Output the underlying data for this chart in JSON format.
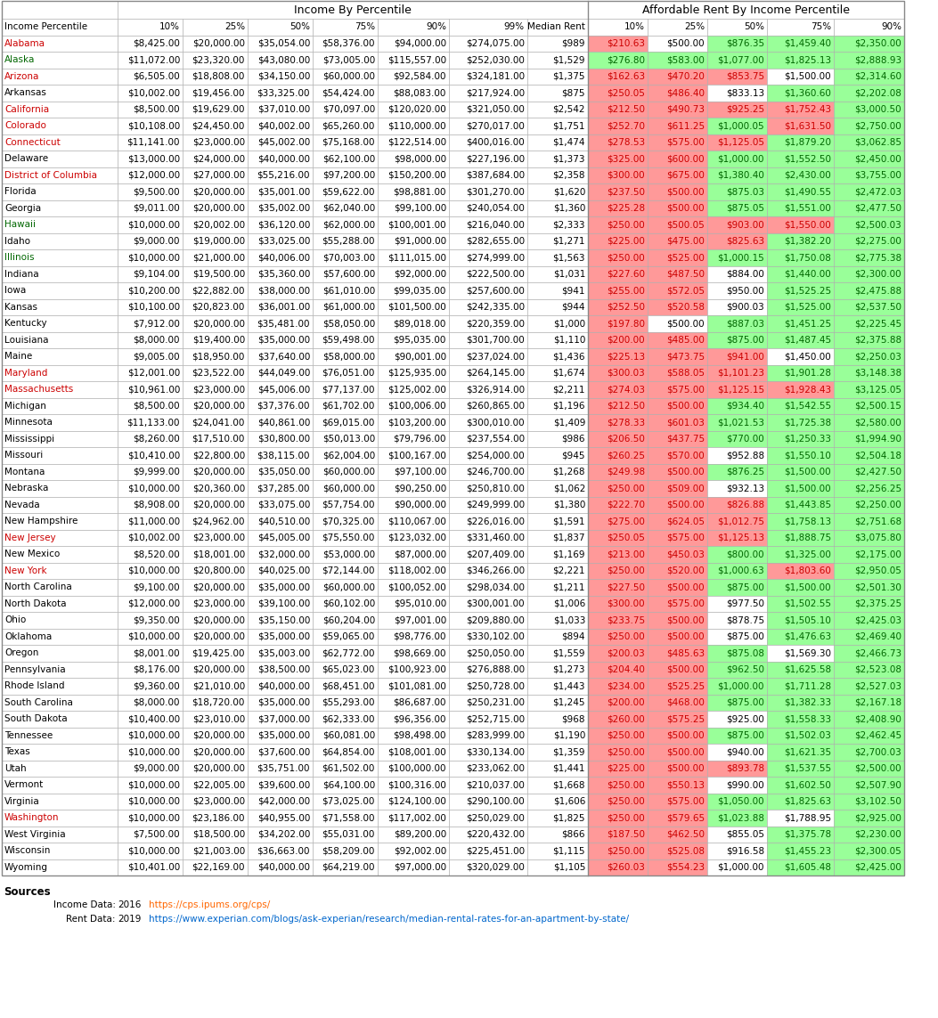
{
  "title_left": "Income By Percentile",
  "title_right": "Affordable Rent By Income Percentile",
  "col_headers": [
    "Income Percentile",
    "10%",
    "25%",
    "50%",
    "75%",
    "90%",
    "99%",
    "Median Rent",
    "10%",
    "25%",
    "50%",
    "75%",
    "90%"
  ],
  "states": [
    "Alabama",
    "Alaska",
    "Arizona",
    "Arkansas",
    "California",
    "Colorado",
    "Connecticut",
    "Delaware",
    "District of Columbia",
    "Florida",
    "Georgia",
    "Hawaii",
    "Idaho",
    "Illinois",
    "Indiana",
    "Iowa",
    "Kansas",
    "Kentucky",
    "Louisiana",
    "Maine",
    "Maryland",
    "Massachusetts",
    "Michigan",
    "Minnesota",
    "Mississippi",
    "Missouri",
    "Montana",
    "Nebraska",
    "Nevada",
    "New Hampshire",
    "New Jersey",
    "New Mexico",
    "New York",
    "North Carolina",
    "North Dakota",
    "Ohio",
    "Oklahoma",
    "Oregon",
    "Pennsylvania",
    "Rhode Island",
    "South Carolina",
    "South Dakota",
    "Tennessee",
    "Texas",
    "Utah",
    "Vermont",
    "Virginia",
    "Washington",
    "West Virginia",
    "Wisconsin",
    "Wyoming"
  ],
  "income_10": [
    "$8,425.00",
    "$11,072.00",
    "$6,505.00",
    "$10,002.00",
    "$8,500.00",
    "$10,108.00",
    "$11,141.00",
    "$13,000.00",
    "$12,000.00",
    "$9,500.00",
    "$9,011.00",
    "$10,000.00",
    "$9,000.00",
    "$10,000.00",
    "$9,104.00",
    "$10,200.00",
    "$10,100.00",
    "$7,912.00",
    "$8,000.00",
    "$9,005.00",
    "$12,001.00",
    "$10,961.00",
    "$8,500.00",
    "$11,133.00",
    "$8,260.00",
    "$10,410.00",
    "$9,999.00",
    "$10,000.00",
    "$8,908.00",
    "$11,000.00",
    "$10,002.00",
    "$8,520.00",
    "$10,000.00",
    "$9,100.00",
    "$12,000.00",
    "$9,350.00",
    "$10,000.00",
    "$8,001.00",
    "$8,176.00",
    "$9,360.00",
    "$8,000.00",
    "$10,400.00",
    "$10,000.00",
    "$10,000.00",
    "$9,000.00",
    "$10,000.00",
    "$10,000.00",
    "$10,000.00",
    "$7,500.00",
    "$10,000.00",
    "$10,401.00"
  ],
  "income_25": [
    "$20,000.00",
    "$23,320.00",
    "$18,808.00",
    "$19,456.00",
    "$19,629.00",
    "$24,450.00",
    "$23,000.00",
    "$24,000.00",
    "$27,000.00",
    "$20,000.00",
    "$20,000.00",
    "$20,002.00",
    "$19,000.00",
    "$21,000.00",
    "$19,500.00",
    "$22,882.00",
    "$20,823.00",
    "$20,000.00",
    "$19,400.00",
    "$18,950.00",
    "$23,522.00",
    "$23,000.00",
    "$20,000.00",
    "$24,041.00",
    "$17,510.00",
    "$22,800.00",
    "$20,000.00",
    "$20,360.00",
    "$20,000.00",
    "$24,962.00",
    "$23,000.00",
    "$18,001.00",
    "$20,800.00",
    "$20,000.00",
    "$23,000.00",
    "$20,000.00",
    "$20,000.00",
    "$19,425.00",
    "$20,000.00",
    "$21,010.00",
    "$18,720.00",
    "$23,010.00",
    "$20,000.00",
    "$20,000.00",
    "$20,000.00",
    "$22,005.00",
    "$23,000.00",
    "$23,186.00",
    "$18,500.00",
    "$21,003.00",
    "$22,169.00"
  ],
  "income_50": [
    "$35,054.00",
    "$43,080.00",
    "$34,150.00",
    "$33,325.00",
    "$37,010.00",
    "$40,002.00",
    "$45,002.00",
    "$40,000.00",
    "$55,216.00",
    "$35,001.00",
    "$35,002.00",
    "$36,120.00",
    "$33,025.00",
    "$40,006.00",
    "$35,360.00",
    "$38,000.00",
    "$36,001.00",
    "$35,481.00",
    "$35,000.00",
    "$37,640.00",
    "$44,049.00",
    "$45,006.00",
    "$37,376.00",
    "$40,861.00",
    "$30,800.00",
    "$38,115.00",
    "$35,050.00",
    "$37,285.00",
    "$33,075.00",
    "$40,510.00",
    "$45,005.00",
    "$32,000.00",
    "$40,025.00",
    "$35,000.00",
    "$39,100.00",
    "$35,150.00",
    "$35,000.00",
    "$35,003.00",
    "$38,500.00",
    "$40,000.00",
    "$35,000.00",
    "$37,000.00",
    "$35,000.00",
    "$37,600.00",
    "$35,751.00",
    "$39,600.00",
    "$42,000.00",
    "$40,955.00",
    "$34,202.00",
    "$36,663.00",
    "$40,000.00"
  ],
  "income_75": [
    "$58,376.00",
    "$73,005.00",
    "$60,000.00",
    "$54,424.00",
    "$70,097.00",
    "$65,260.00",
    "$75,168.00",
    "$62,100.00",
    "$97,200.00",
    "$59,622.00",
    "$62,040.00",
    "$62,000.00",
    "$55,288.00",
    "$70,003.00",
    "$57,600.00",
    "$61,010.00",
    "$61,000.00",
    "$58,050.00",
    "$59,498.00",
    "$58,000.00",
    "$76,051.00",
    "$77,137.00",
    "$61,702.00",
    "$69,015.00",
    "$50,013.00",
    "$62,004.00",
    "$60,000.00",
    "$60,000.00",
    "$57,754.00",
    "$70,325.00",
    "$75,550.00",
    "$53,000.00",
    "$72,144.00",
    "$60,000.00",
    "$60,102.00",
    "$60,204.00",
    "$59,065.00",
    "$62,772.00",
    "$65,023.00",
    "$68,451.00",
    "$55,293.00",
    "$62,333.00",
    "$60,081.00",
    "$64,854.00",
    "$61,502.00",
    "$64,100.00",
    "$73,025.00",
    "$71,558.00",
    "$55,031.00",
    "$58,209.00",
    "$64,219.00"
  ],
  "income_90": [
    "$94,000.00",
    "$115,557.00",
    "$92,584.00",
    "$88,083.00",
    "$120,020.00",
    "$110,000.00",
    "$122,514.00",
    "$98,000.00",
    "$150,200.00",
    "$98,881.00",
    "$99,100.00",
    "$100,001.00",
    "$91,000.00",
    "$111,015.00",
    "$92,000.00",
    "$99,035.00",
    "$101,500.00",
    "$89,018.00",
    "$95,035.00",
    "$90,001.00",
    "$125,935.00",
    "$125,002.00",
    "$100,006.00",
    "$103,200.00",
    "$79,796.00",
    "$100,167.00",
    "$97,100.00",
    "$90,250.00",
    "$90,000.00",
    "$110,067.00",
    "$123,032.00",
    "$87,000.00",
    "$118,002.00",
    "$100,052.00",
    "$95,010.00",
    "$97,001.00",
    "$98,776.00",
    "$98,669.00",
    "$100,923.00",
    "$101,081.00",
    "$86,687.00",
    "$96,356.00",
    "$98,498.00",
    "$108,001.00",
    "$100,000.00",
    "$100,316.00",
    "$124,100.00",
    "$117,002.00",
    "$89,200.00",
    "$92,002.00",
    "$97,000.00"
  ],
  "income_99": [
    "$274,075.00",
    "$252,030.00",
    "$324,181.00",
    "$217,924.00",
    "$321,050.00",
    "$270,017.00",
    "$400,016.00",
    "$227,196.00",
    "$387,684.00",
    "$301,270.00",
    "$240,054.00",
    "$216,040.00",
    "$282,655.00",
    "$274,999.00",
    "$222,500.00",
    "$257,600.00",
    "$242,335.00",
    "$220,359.00",
    "$301,700.00",
    "$237,024.00",
    "$264,145.00",
    "$326,914.00",
    "$260,865.00",
    "$300,010.00",
    "$237,554.00",
    "$254,000.00",
    "$246,700.00",
    "$250,810.00",
    "$249,999.00",
    "$226,016.00",
    "$331,460.00",
    "$207,409.00",
    "$346,266.00",
    "$298,034.00",
    "$300,001.00",
    "$209,880.00",
    "$330,102.00",
    "$250,050.00",
    "$276,888.00",
    "$250,728.00",
    "$250,231.00",
    "$252,715.00",
    "$283,999.00",
    "$330,134.00",
    "$233,062.00",
    "$210,037.00",
    "$290,100.00",
    "$250,029.00",
    "$220,432.00",
    "$225,451.00",
    "$320,029.00"
  ],
  "median_rent": [
    "$989",
    "$1,529",
    "$1,375",
    "$875",
    "$2,542",
    "$1,751",
    "$1,474",
    "$1,373",
    "$2,358",
    "$1,620",
    "$1,360",
    "$2,333",
    "$1,271",
    "$1,563",
    "$1,031",
    "$941",
    "$944",
    "$1,000",
    "$1,110",
    "$1,436",
    "$1,674",
    "$2,211",
    "$1,196",
    "$1,409",
    "$986",
    "$945",
    "$1,268",
    "$1,062",
    "$1,380",
    "$1,591",
    "$1,837",
    "$1,169",
    "$2,221",
    "$1,211",
    "$1,006",
    "$1,033",
    "$894",
    "$1,559",
    "$1,273",
    "$1,443",
    "$1,245",
    "$968",
    "$1,190",
    "$1,359",
    "$1,441",
    "$1,668",
    "$1,606",
    "$1,825",
    "$866",
    "$1,115",
    "$1,105"
  ],
  "rent_10": [
    "$210.63",
    "$276.80",
    "$162.63",
    "$250.05",
    "$212.50",
    "$252.70",
    "$278.53",
    "$325.00",
    "$300.00",
    "$237.50",
    "$225.28",
    "$250.00",
    "$225.00",
    "$250.00",
    "$227.60",
    "$255.00",
    "$252.50",
    "$197.80",
    "$200.00",
    "$225.13",
    "$300.03",
    "$274.03",
    "$212.50",
    "$278.33",
    "$206.50",
    "$260.25",
    "$249.98",
    "$250.00",
    "$222.70",
    "$275.00",
    "$250.05",
    "$213.00",
    "$250.00",
    "$227.50",
    "$300.00",
    "$233.75",
    "$250.00",
    "$200.03",
    "$204.40",
    "$234.00",
    "$200.00",
    "$260.00",
    "$250.00",
    "$250.00",
    "$225.00",
    "$250.00",
    "$250.00",
    "$250.00",
    "$187.50",
    "$250.00",
    "$260.03"
  ],
  "rent_25": [
    "$500.00",
    "$583.00",
    "$470.20",
    "$486.40",
    "$490.73",
    "$611.25",
    "$575.00",
    "$600.00",
    "$675.00",
    "$500.00",
    "$500.00",
    "$500.05",
    "$475.00",
    "$525.00",
    "$487.50",
    "$572.05",
    "$520.58",
    "$500.00",
    "$485.00",
    "$473.75",
    "$588.05",
    "$575.00",
    "$500.00",
    "$601.03",
    "$437.75",
    "$570.00",
    "$500.00",
    "$509.00",
    "$500.00",
    "$624.05",
    "$575.00",
    "$450.03",
    "$520.00",
    "$500.00",
    "$575.00",
    "$500.00",
    "$500.00",
    "$485.63",
    "$500.00",
    "$525.25",
    "$468.00",
    "$575.25",
    "$500.00",
    "$500.00",
    "$500.00",
    "$550.13",
    "$575.00",
    "$579.65",
    "$462.50",
    "$525.08",
    "$554.23"
  ],
  "rent_50": [
    "$876.35",
    "$1,077.00",
    "$853.75",
    "$833.13",
    "$925.25",
    "$1,000.05",
    "$1,125.05",
    "$1,000.00",
    "$1,380.40",
    "$875.03",
    "$875.05",
    "$903.00",
    "$825.63",
    "$1,000.15",
    "$884.00",
    "$950.00",
    "$900.03",
    "$887.03",
    "$875.00",
    "$941.00",
    "$1,101.23",
    "$1,125.15",
    "$934.40",
    "$1,021.53",
    "$770.00",
    "$952.88",
    "$876.25",
    "$932.13",
    "$826.88",
    "$1,012.75",
    "$1,125.13",
    "$800.00",
    "$1,000.63",
    "$875.00",
    "$977.50",
    "$878.75",
    "$875.00",
    "$875.08",
    "$962.50",
    "$1,000.00",
    "$875.00",
    "$925.00",
    "$875.00",
    "$940.00",
    "$893.78",
    "$990.00",
    "$1,050.00",
    "$1,023.88",
    "$855.05",
    "$916.58",
    "$1,000.00"
  ],
  "rent_75": [
    "$1,459.40",
    "$1,825.13",
    "$1,500.00",
    "$1,360.60",
    "$1,752.43",
    "$1,631.50",
    "$1,879.20",
    "$1,552.50",
    "$2,430.00",
    "$1,490.55",
    "$1,551.00",
    "$1,550.00",
    "$1,382.20",
    "$1,750.08",
    "$1,440.00",
    "$1,525.25",
    "$1,525.00",
    "$1,451.25",
    "$1,487.45",
    "$1,450.00",
    "$1,901.28",
    "$1,928.43",
    "$1,542.55",
    "$1,725.38",
    "$1,250.33",
    "$1,550.10",
    "$1,500.00",
    "$1,500.00",
    "$1,443.85",
    "$1,758.13",
    "$1,888.75",
    "$1,325.00",
    "$1,803.60",
    "$1,500.00",
    "$1,502.55",
    "$1,505.10",
    "$1,476.63",
    "$1,569.30",
    "$1,625.58",
    "$1,711.28",
    "$1,382.33",
    "$1,558.33",
    "$1,502.03",
    "$1,621.35",
    "$1,537.55",
    "$1,602.50",
    "$1,825.63",
    "$1,788.95",
    "$1,375.78",
    "$1,455.23",
    "$1,605.48"
  ],
  "rent_90": [
    "$2,350.00",
    "$2,888.93",
    "$2,314.60",
    "$2,202.08",
    "$3,000.50",
    "$2,750.00",
    "$3,062.85",
    "$2,450.00",
    "$3,755.00",
    "$2,472.03",
    "$2,477.50",
    "$2,500.03",
    "$2,275.00",
    "$2,775.38",
    "$2,300.00",
    "$2,475.88",
    "$2,537.50",
    "$2,225.45",
    "$2,375.88",
    "$2,250.03",
    "$3,148.38",
    "$3,125.05",
    "$2,500.15",
    "$2,580.00",
    "$1,994.90",
    "$2,504.18",
    "$2,427.50",
    "$2,256.25",
    "$2,250.00",
    "$2,751.68",
    "$3,075.80",
    "$2,175.00",
    "$2,950.05",
    "$2,501.30",
    "$2,375.25",
    "$2,425.03",
    "$2,469.40",
    "$2,466.73",
    "$2,523.08",
    "$2,527.03",
    "$2,167.18",
    "$2,408.90",
    "$2,462.45",
    "$2,700.03",
    "$2,500.00",
    "$2,507.90",
    "$3,102.50",
    "$2,925.00",
    "$2,230.00",
    "$2,300.05",
    "$2,425.00"
  ],
  "state_colors": {
    "Alabama": "#FF9999",
    "Alaska": "#99FF99",
    "Arizona": "#FF9999",
    "Arkansas": "#FFFFFF",
    "California": "#FF9999",
    "Colorado": "#FF9999",
    "Connecticut": "#FF9999",
    "Delaware": "#FFFFFF",
    "District of Columbia": "#FF9999",
    "Florida": "#FFFFFF",
    "Georgia": "#FFFFFF",
    "Hawaii": "#99FF99",
    "Idaho": "#FFFFFF",
    "Illinois": "#99FF99",
    "Indiana": "#FFFFFF",
    "Iowa": "#FFFFFF",
    "Kansas": "#FFFFFF",
    "Kentucky": "#FFFFFF",
    "Louisiana": "#FFFFFF",
    "Maine": "#FFFFFF",
    "Maryland": "#FF9999",
    "Massachusetts": "#FF9999",
    "Michigan": "#FFFFFF",
    "Minnesota": "#FFFFFF",
    "Mississippi": "#FFFFFF",
    "Missouri": "#FFFFFF",
    "Montana": "#FFFFFF",
    "Nebraska": "#FFFFFF",
    "Nevada": "#FFFFFF",
    "New Hampshire": "#FFFFFF",
    "New Jersey": "#FF9999",
    "New Mexico": "#FFFFFF",
    "New York": "#FF9999",
    "North Carolina": "#FFFFFF",
    "North Dakota": "#FFFFFF",
    "Ohio": "#FFFFFF",
    "Oklahoma": "#FFFFFF",
    "Oregon": "#FFFFFF",
    "Pennsylvania": "#FFFFFF",
    "Rhode Island": "#FFFFFF",
    "South Carolina": "#FFFFFF",
    "South Dakota": "#FFFFFF",
    "Tennessee": "#FFFFFF",
    "Texas": "#FFFFFF",
    "Utah": "#FFFFFF",
    "Vermont": "#FFFFFF",
    "Virginia": "#FFFFFF",
    "Washington": "#FF9999",
    "West Virginia": "#FFFFFF",
    "Wisconsin": "#FFFFFF",
    "Wyoming": "#FFFFFF"
  },
  "rent_colors": {
    "Alabama": [
      "#FF9999",
      "#FFFFFF",
      "#99FF99",
      "#99FF99",
      "#99FF99"
    ],
    "Alaska": [
      "#99FF99",
      "#99FF99",
      "#99FF99",
      "#99FF99",
      "#99FF99"
    ],
    "Arizona": [
      "#FF9999",
      "#FF9999",
      "#FF9999",
      "#FFFFFF",
      "#99FF99"
    ],
    "Arkansas": [
      "#FF9999",
      "#FF9999",
      "#FFFFFF",
      "#99FF99",
      "#99FF99"
    ],
    "California": [
      "#FF9999",
      "#FF9999",
      "#FF9999",
      "#FF9999",
      "#99FF99"
    ],
    "Colorado": [
      "#FF9999",
      "#FF9999",
      "#99FF99",
      "#FF9999",
      "#99FF99"
    ],
    "Connecticut": [
      "#FF9999",
      "#FF9999",
      "#FF9999",
      "#99FF99",
      "#99FF99"
    ],
    "Delaware": [
      "#FF9999",
      "#FF9999",
      "#99FF99",
      "#99FF99",
      "#99FF99"
    ],
    "District of Columbia": [
      "#FF9999",
      "#FF9999",
      "#99FF99",
      "#99FF99",
      "#99FF99"
    ],
    "Florida": [
      "#FF9999",
      "#FF9999",
      "#99FF99",
      "#99FF99",
      "#99FF99"
    ],
    "Georgia": [
      "#FF9999",
      "#FF9999",
      "#99FF99",
      "#99FF99",
      "#99FF99"
    ],
    "Hawaii": [
      "#FF9999",
      "#FF9999",
      "#FF9999",
      "#FF9999",
      "#99FF99"
    ],
    "Idaho": [
      "#FF9999",
      "#FF9999",
      "#FF9999",
      "#99FF99",
      "#99FF99"
    ],
    "Illinois": [
      "#FF9999",
      "#FF9999",
      "#99FF99",
      "#99FF99",
      "#99FF99"
    ],
    "Indiana": [
      "#FF9999",
      "#FF9999",
      "#FFFFFF",
      "#99FF99",
      "#99FF99"
    ],
    "Iowa": [
      "#FF9999",
      "#FF9999",
      "#FFFFFF",
      "#99FF99",
      "#99FF99"
    ],
    "Kansas": [
      "#FF9999",
      "#FF9999",
      "#FFFFFF",
      "#99FF99",
      "#99FF99"
    ],
    "Kentucky": [
      "#FF9999",
      "#FFFFFF",
      "#99FF99",
      "#99FF99",
      "#99FF99"
    ],
    "Louisiana": [
      "#FF9999",
      "#FF9999",
      "#99FF99",
      "#99FF99",
      "#99FF99"
    ],
    "Maine": [
      "#FF9999",
      "#FF9999",
      "#FF9999",
      "#FFFFFF",
      "#99FF99"
    ],
    "Maryland": [
      "#FF9999",
      "#FF9999",
      "#FF9999",
      "#99FF99",
      "#99FF99"
    ],
    "Massachusetts": [
      "#FF9999",
      "#FF9999",
      "#FF9999",
      "#FF9999",
      "#99FF99"
    ],
    "Michigan": [
      "#FF9999",
      "#FF9999",
      "#99FF99",
      "#99FF99",
      "#99FF99"
    ],
    "Minnesota": [
      "#FF9999",
      "#FF9999",
      "#99FF99",
      "#99FF99",
      "#99FF99"
    ],
    "Mississippi": [
      "#FF9999",
      "#FF9999",
      "#99FF99",
      "#99FF99",
      "#99FF99"
    ],
    "Missouri": [
      "#FF9999",
      "#FF9999",
      "#FFFFFF",
      "#99FF99",
      "#99FF99"
    ],
    "Montana": [
      "#FF9999",
      "#FF9999",
      "#99FF99",
      "#99FF99",
      "#99FF99"
    ],
    "Nebraska": [
      "#FF9999",
      "#FF9999",
      "#FFFFFF",
      "#99FF99",
      "#99FF99"
    ],
    "Nevada": [
      "#FF9999",
      "#FF9999",
      "#FF9999",
      "#99FF99",
      "#99FF99"
    ],
    "New Hampshire": [
      "#FF9999",
      "#FF9999",
      "#FF9999",
      "#99FF99",
      "#99FF99"
    ],
    "New Jersey": [
      "#FF9999",
      "#FF9999",
      "#FF9999",
      "#99FF99",
      "#99FF99"
    ],
    "New Mexico": [
      "#FF9999",
      "#FF9999",
      "#99FF99",
      "#99FF99",
      "#99FF99"
    ],
    "New York": [
      "#FF9999",
      "#FF9999",
      "#99FF99",
      "#FF9999",
      "#99FF99"
    ],
    "North Carolina": [
      "#FF9999",
      "#FF9999",
      "#99FF99",
      "#99FF99",
      "#99FF99"
    ],
    "North Dakota": [
      "#FF9999",
      "#FF9999",
      "#FFFFFF",
      "#99FF99",
      "#99FF99"
    ],
    "Ohio": [
      "#FF9999",
      "#FF9999",
      "#FFFFFF",
      "#99FF99",
      "#99FF99"
    ],
    "Oklahoma": [
      "#FF9999",
      "#FF9999",
      "#FFFFFF",
      "#99FF99",
      "#99FF99"
    ],
    "Oregon": [
      "#FF9999",
      "#FF9999",
      "#99FF99",
      "#FFFFFF",
      "#99FF99"
    ],
    "Pennsylvania": [
      "#FF9999",
      "#FF9999",
      "#99FF99",
      "#99FF99",
      "#99FF99"
    ],
    "Rhode Island": [
      "#FF9999",
      "#FF9999",
      "#99FF99",
      "#99FF99",
      "#99FF99"
    ],
    "South Carolina": [
      "#FF9999",
      "#FF9999",
      "#99FF99",
      "#99FF99",
      "#99FF99"
    ],
    "South Dakota": [
      "#FF9999",
      "#FF9999",
      "#FFFFFF",
      "#99FF99",
      "#99FF99"
    ],
    "Tennessee": [
      "#FF9999",
      "#FF9999",
      "#99FF99",
      "#99FF99",
      "#99FF99"
    ],
    "Texas": [
      "#FF9999",
      "#FF9999",
      "#FFFFFF",
      "#99FF99",
      "#99FF99"
    ],
    "Utah": [
      "#FF9999",
      "#FF9999",
      "#FF9999",
      "#99FF99",
      "#99FF99"
    ],
    "Vermont": [
      "#FF9999",
      "#FF9999",
      "#FFFFFF",
      "#99FF99",
      "#99FF99"
    ],
    "Virginia": [
      "#FF9999",
      "#FF9999",
      "#99FF99",
      "#99FF99",
      "#99FF99"
    ],
    "Washington": [
      "#FF9999",
      "#FF9999",
      "#99FF99",
      "#FFFFFF",
      "#99FF99"
    ],
    "West Virginia": [
      "#FF9999",
      "#FF9999",
      "#FFFFFF",
      "#99FF99",
      "#99FF99"
    ],
    "Wisconsin": [
      "#FF9999",
      "#FF9999",
      "#FFFFFF",
      "#99FF99",
      "#99FF99"
    ],
    "Wyoming": [
      "#FF9999",
      "#FF9999",
      "#FFFFFF",
      "#99FF99",
      "#99FF99"
    ]
  },
  "sources_label": "Sources",
  "income_data_label": "Income Data:",
  "income_data_year": "2016",
  "income_data_url": "https://cps.ipums.org/cps/",
  "rent_data_label": "Rent Data:",
  "rent_data_year": "2019",
  "rent_data_url": "https://www.experian.com/blogs/ask-experian/research/median-rental-rates-for-an-apartment-by-state/"
}
